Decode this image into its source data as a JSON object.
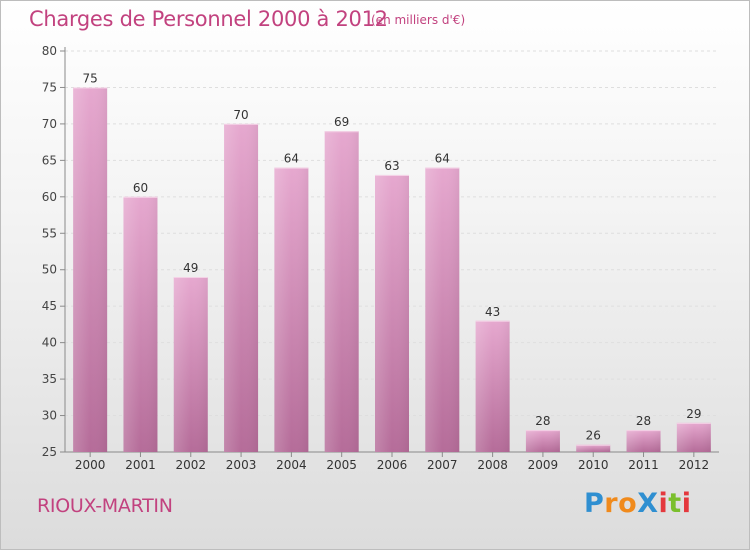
{
  "header": {
    "title": "Charges de Personnel 2000 à 2012",
    "unit_note": "(en milliers d'€)"
  },
  "footer": {
    "commune": "RIOUX-MARTIN",
    "brand": {
      "letters": [
        {
          "ch": "P",
          "color": "#2f8fd1"
        },
        {
          "ch": "r",
          "color": "#f08a1c"
        },
        {
          "ch": "o",
          "color": "#f08a1c"
        },
        {
          "ch": "X",
          "color": "#2f8fd1"
        },
        {
          "ch": "i",
          "color": "#e4383d"
        },
        {
          "ch": "t",
          "color": "#7bbf2d"
        },
        {
          "ch": "i",
          "color": "#e4383d"
        }
      ]
    }
  },
  "chart_data": {
    "type": "bar",
    "title": "Charges de Personnel 2000 à 2012",
    "subtitle": "(en milliers d'€)",
    "xlabel": "",
    "ylabel": "",
    "categories": [
      "2000",
      "2001",
      "2002",
      "2003",
      "2004",
      "2005",
      "2006",
      "2007",
      "2008",
      "2009",
      "2010",
      "2011",
      "2012"
    ],
    "values": [
      75,
      60,
      49,
      70,
      64,
      69,
      63,
      64,
      43,
      28,
      26,
      28,
      29
    ],
    "ylim": [
      25,
      80
    ],
    "yticks": [
      25,
      30,
      35,
      40,
      45,
      50,
      55,
      60,
      65,
      70,
      75,
      80
    ],
    "grid": true,
    "bar_color": "#d58fba"
  }
}
